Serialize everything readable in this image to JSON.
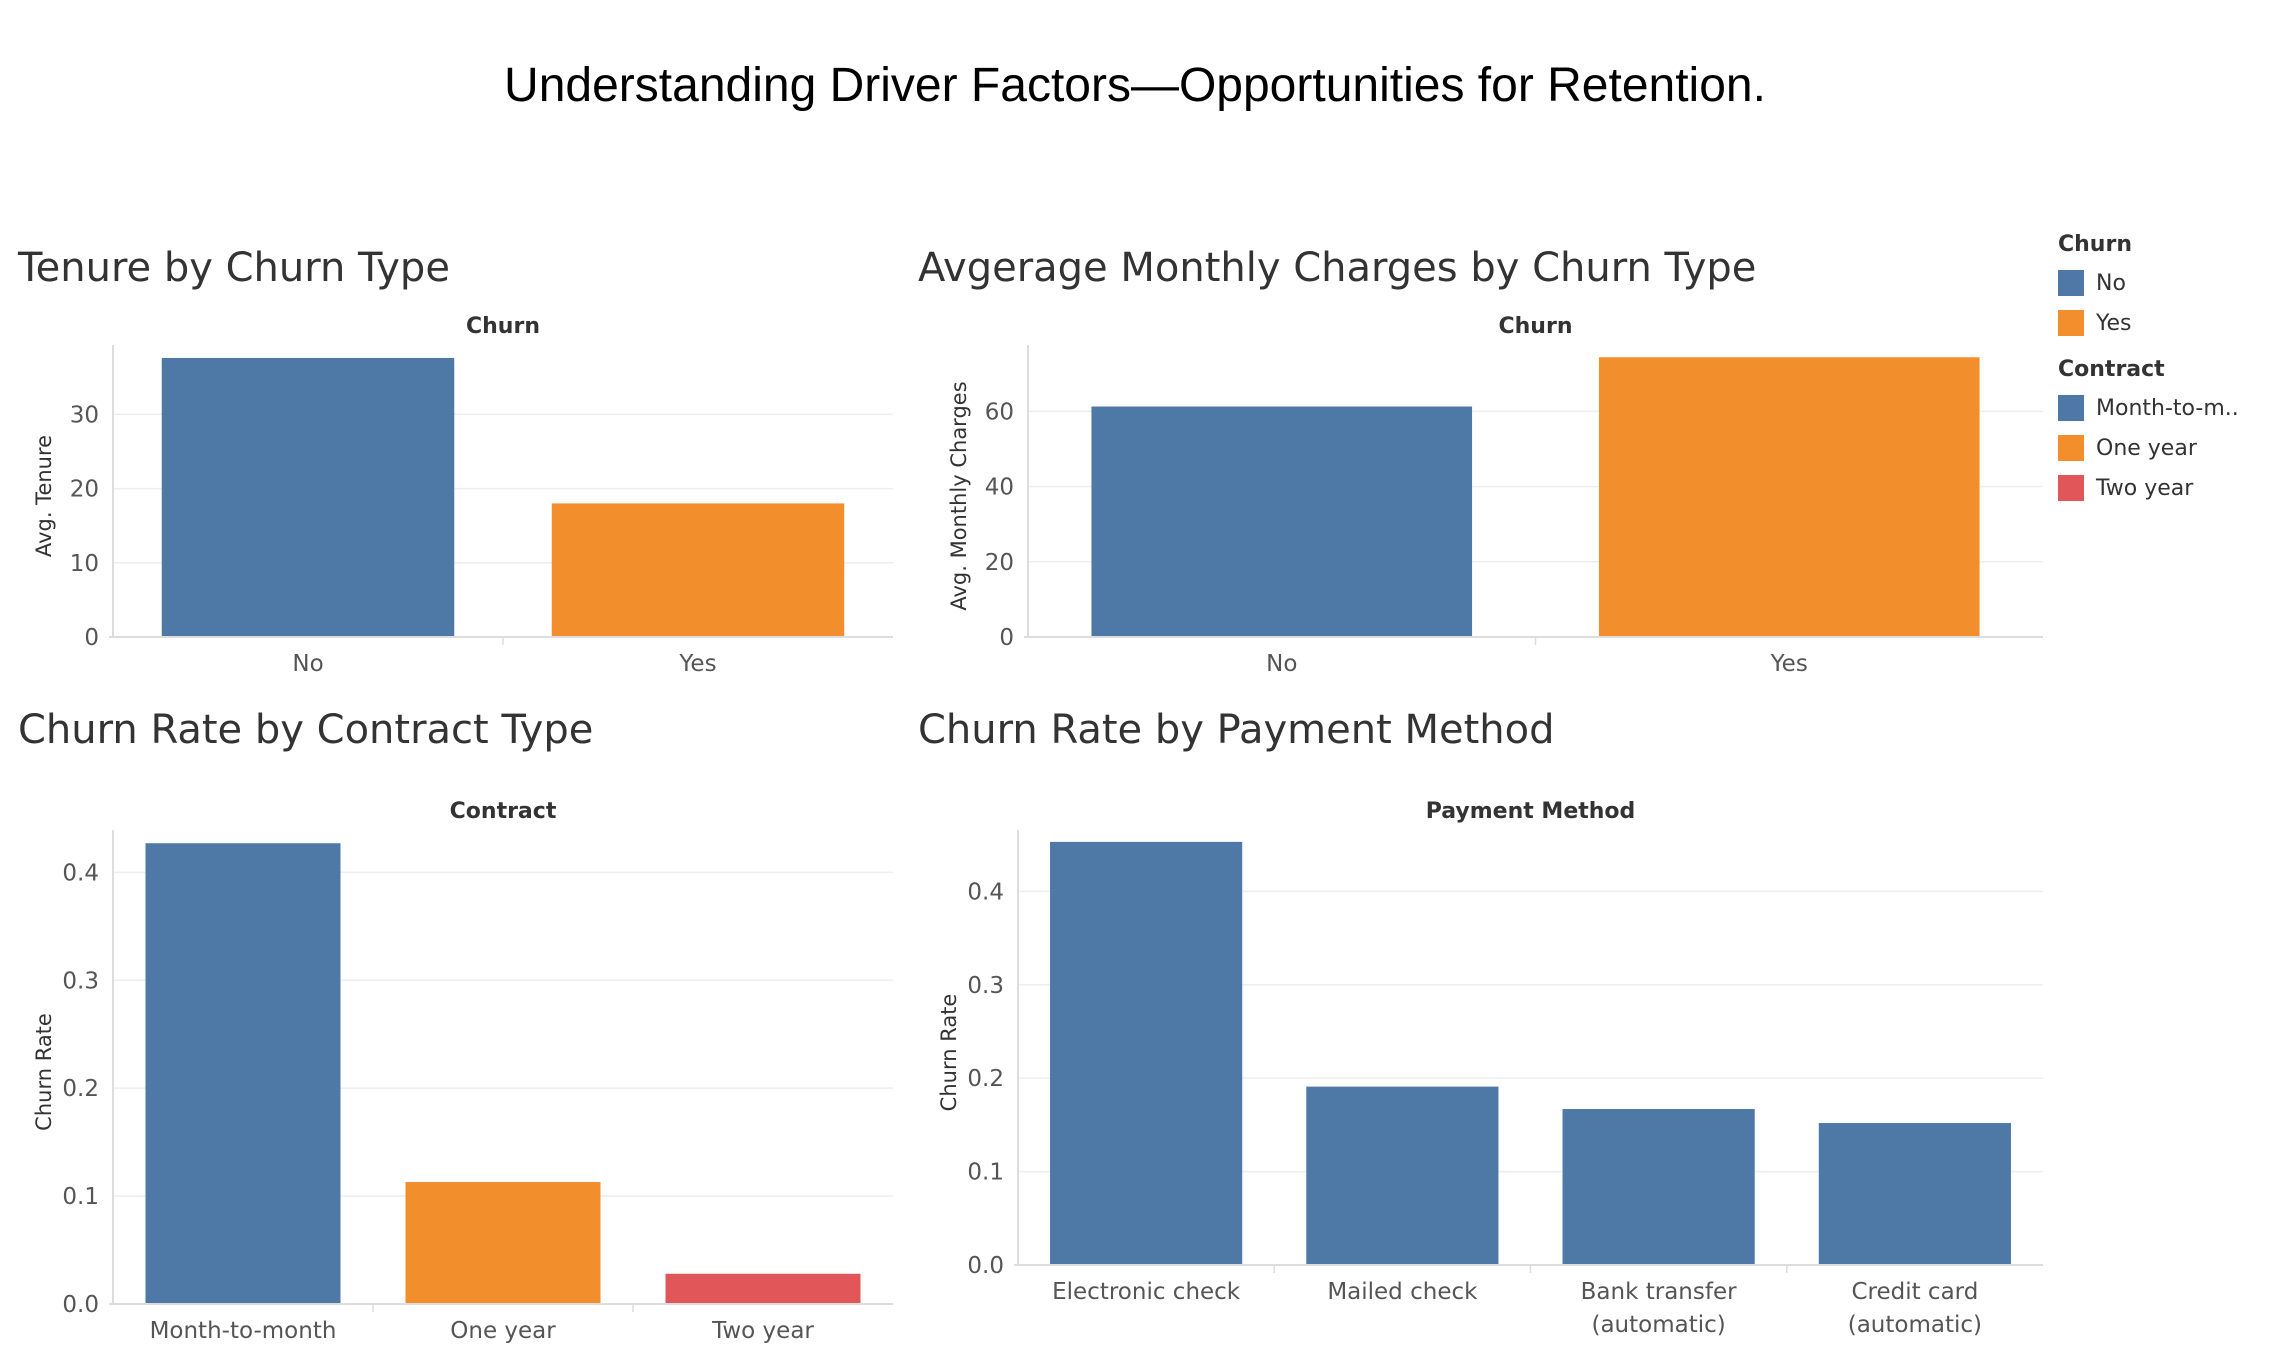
{
  "dashboard_title": "Understanding Driver Factors—Opportunities for Retention.",
  "colors": {
    "blue": "#4e79a7",
    "orange": "#f28e2b",
    "red": "#e15759",
    "grid": "#eeeeee",
    "axis": "#dddddd",
    "text": "#555555"
  },
  "legend": {
    "churn": {
      "title": "Churn",
      "items": [
        {
          "label": "No",
          "color": "#4e79a7"
        },
        {
          "label": "Yes",
          "color": "#f28e2b"
        }
      ]
    },
    "contract": {
      "title": "Contract",
      "items": [
        {
          "label": "Month-to-m..",
          "color": "#4e79a7"
        },
        {
          "label": "One year",
          "color": "#f28e2b"
        },
        {
          "label": "Two year",
          "color": "#e15759"
        }
      ]
    }
  },
  "chart_data": [
    {
      "id": "tenure",
      "type": "bar",
      "title": "Tenure by Churn Type",
      "header": "Churn",
      "ylabel": "Avg. Tenure",
      "xlabel": "",
      "categories": [
        [
          "No"
        ],
        [
          "Yes"
        ]
      ],
      "values": [
        37.6,
        18.0
      ],
      "colors": [
        "#4e79a7",
        "#f28e2b"
      ],
      "ylim": [
        0,
        38
      ],
      "yticks": [
        0,
        10,
        20,
        30
      ],
      "grid": true
    },
    {
      "id": "charges",
      "type": "bar",
      "title": "Avgerage Monthly Charges by Churn Type",
      "header": "Churn",
      "ylabel": "Avg. Monthly Charges",
      "xlabel": "",
      "categories": [
        [
          "No"
        ],
        [
          "Yes"
        ]
      ],
      "values": [
        61.3,
        74.4
      ],
      "colors": [
        "#4e79a7",
        "#f28e2b"
      ],
      "ylim": [
        0,
        75
      ],
      "yticks": [
        0,
        20,
        40,
        60
      ],
      "grid": true
    },
    {
      "id": "contract",
      "type": "bar",
      "title": "Churn Rate by Contract Type",
      "header": "Contract",
      "ylabel": "Churn Rate",
      "xlabel": "",
      "categories": [
        [
          "Month-to-month"
        ],
        [
          "One year"
        ],
        [
          "Two year"
        ]
      ],
      "values": [
        0.427,
        0.113,
        0.028
      ],
      "colors": [
        "#4e79a7",
        "#f28e2b",
        "#e15759"
      ],
      "ylim": [
        0,
        0.43
      ],
      "yticks": [
        0.0,
        0.1,
        0.2,
        0.3,
        0.4
      ],
      "tick_decimals": 1,
      "grid": true
    },
    {
      "id": "payment",
      "type": "bar",
      "title": "Churn Rate by Payment Method",
      "header": "Payment Method",
      "ylabel": "Churn Rate",
      "xlabel": "",
      "categories": [
        [
          "Electronic check"
        ],
        [
          "Mailed check"
        ],
        [
          "Bank transfer",
          "(automatic)"
        ],
        [
          "Credit card",
          "(automatic)"
        ]
      ],
      "values": [
        0.453,
        0.191,
        0.167,
        0.152
      ],
      "colors": [
        "#4e79a7",
        "#4e79a7",
        "#4e79a7",
        "#4e79a7"
      ],
      "ylim": [
        0,
        0.455
      ],
      "yticks": [
        0.0,
        0.1,
        0.2,
        0.3,
        0.4
      ],
      "tick_decimals": 1,
      "grid": true
    }
  ]
}
